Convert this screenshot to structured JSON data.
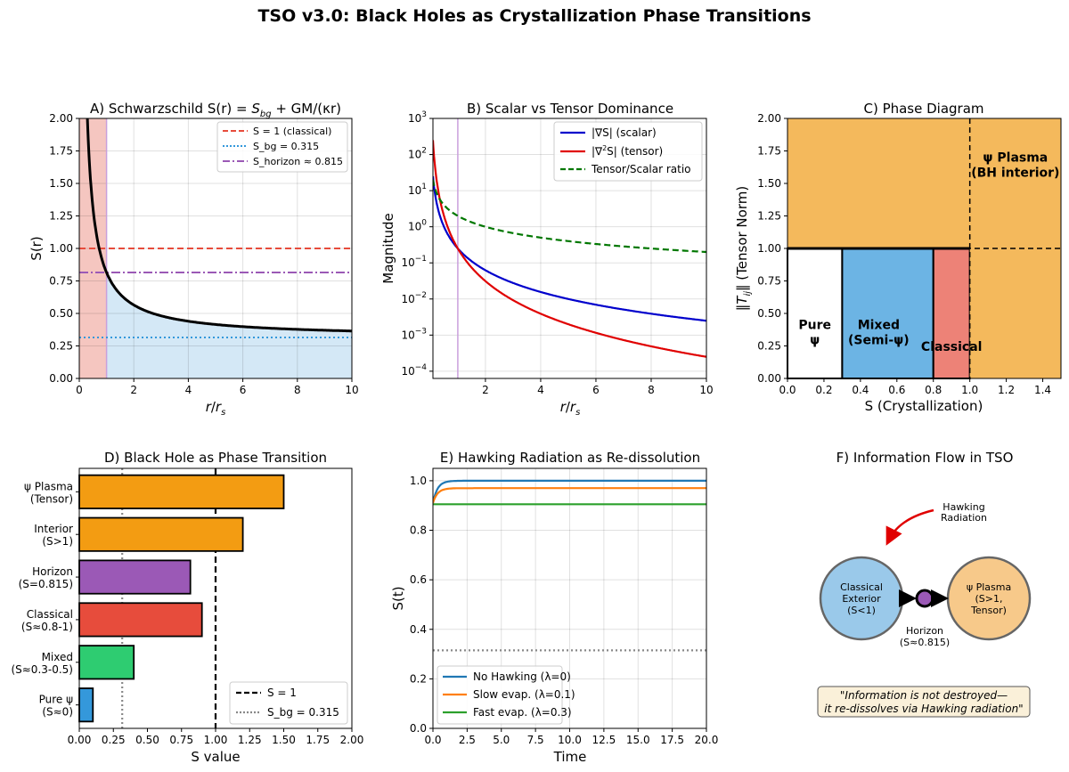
{
  "suptitle": "TSO v3.0: Black Holes as Crystallization Phase Transitions",
  "colors": {
    "classical_line": "#e74c3c",
    "sbg_line": "#3498db",
    "horizon_line": "#9b59b6",
    "scalar": "#0000cc",
    "tensor": "#e00000",
    "ratio": "#007700",
    "plasma": "#f4b95c",
    "mixed": "#6cb4e4",
    "classical_region": "#ed8277",
    "pure": "#ffffff",
    "bar_plasma": "#f39c12",
    "bar_interior": "#f39c12",
    "bar_horizon": "#9b59b6",
    "bar_classical": "#e74c3c",
    "bar_mixed": "#2ecc71",
    "bar_pure": "#3498db",
    "no_hawking": "#1f77b4",
    "slow_evap": "#ff7f0e",
    "fast_evap": "#2ca02c"
  },
  "chart_data": [
    {
      "id": "A",
      "type": "line",
      "title_pre": "A) Schwarzschild S(r) = ",
      "title_math_S": "S",
      "title_math_sub": "bg",
      "title_post": " + GM/(κr)",
      "xlabel_main": "r",
      "xlabel_sep": "/",
      "xlabel_sub_base": "r",
      "xlabel_sub": "s",
      "ylabel": "S(r)",
      "xlim": [
        0,
        10
      ],
      "ylim": [
        0,
        2
      ],
      "xticks": [
        "0",
        "2",
        "4",
        "6",
        "8",
        "10"
      ],
      "yticks": [
        "0.00",
        "0.25",
        "0.50",
        "0.75",
        "1.00",
        "1.25",
        "1.50",
        "1.75",
        "2.00"
      ],
      "grid": true,
      "curve": {
        "S_bg": 0.315,
        "coeff": 0.5,
        "r_min": 0.25,
        "r_max": 10
      },
      "horizon_r": 1.0,
      "hlines": [
        1.0,
        0.315,
        0.815
      ],
      "legend_position": "upper right",
      "legend": [
        "S = 1 (classical)",
        "S_bg = 0.315",
        "S_horizon ≈ 0.815"
      ]
    },
    {
      "id": "B",
      "type": "line",
      "title": "B) Scalar vs Tensor Dominance",
      "xlabel_main": "r",
      "xlabel_sep": "/",
      "xlabel_sub_base": "r",
      "xlabel_sub": "s",
      "ylabel": "Magnitude",
      "yscale": "log",
      "xlim": [
        0.1,
        10
      ],
      "ylim_exp": [
        -4.2,
        3
      ],
      "xticks": [
        "2",
        "4",
        "6",
        "8",
        "10"
      ],
      "yticks_exp": [
        "-4",
        "-3",
        "-2",
        "-1",
        "0",
        "1",
        "2",
        "3"
      ],
      "ytick_base": "10",
      "vline_r": 1.0,
      "grid": true,
      "legend_position": "upper right",
      "legend_scalar": "|∇S| (scalar)",
      "legend_tensor_pre": "|∇",
      "legend_tensor_sup": "2",
      "legend_tensor_post": "S| (tensor)",
      "legend_ratio": "Tensor/Scalar ratio",
      "series": {
        "scalar": {
          "x": [
            0.1,
            0.2,
            0.3,
            0.5,
            0.7,
            1,
            1.5,
            2,
            3,
            4,
            5,
            6,
            7,
            8,
            9,
            10
          ],
          "y": [
            25,
            6.25,
            2.8,
            1.0,
            0.5,
            0.25,
            0.11,
            0.063,
            0.028,
            0.016,
            0.01,
            0.0069,
            0.0051,
            0.0039,
            0.0031,
            0.0025
          ]
        },
        "tensor": {
          "x": [
            0.1,
            0.2,
            0.3,
            0.5,
            0.7,
            1,
            1.5,
            2,
            3,
            4,
            5,
            6,
            7,
            8,
            9,
            10
          ],
          "y": [
            300,
            50,
            15,
            3.2,
            1.2,
            0.25,
            0.074,
            0.031,
            0.0093,
            0.0039,
            0.002,
            0.0012,
            0.00073,
            0.00049,
            0.00034,
            0.00025
          ]
        },
        "ratio": {
          "x": [
            0.1,
            0.2,
            0.3,
            0.5,
            0.7,
            1,
            1.5,
            2,
            3,
            4,
            5,
            6,
            7,
            8,
            9,
            10
          ],
          "y": [
            20,
            10,
            6.67,
            4,
            2.86,
            2,
            1.33,
            1,
            0.67,
            0.5,
            0.4,
            0.33,
            0.29,
            0.25,
            0.22,
            0.2
          ]
        }
      }
    },
    {
      "id": "C",
      "type": "area",
      "title": "C) Phase Diagram",
      "xlabel": "S (Crystallization)",
      "ylabel_pre": "‖",
      "ylabel_T": "T",
      "ylabel_sub": "ij",
      "ylabel_post": "‖ (Tensor Norm)",
      "xlim": [
        0,
        1.5
      ],
      "ylim": [
        0,
        2
      ],
      "xticks": [
        "0.0",
        "0.2",
        "0.4",
        "0.6",
        "0.8",
        "1.0",
        "1.2",
        "1.4"
      ],
      "yticks": [
        "0.00",
        "0.25",
        "0.50",
        "0.75",
        "1.00",
        "1.25",
        "1.50",
        "1.75",
        "2.00"
      ],
      "regions": [
        {
          "x0": 0,
          "x1": 0.3,
          "y0": 0,
          "y1": 1,
          "color_key": "pure",
          "label_lines": [
            "Pure",
            "ψ"
          ]
        },
        {
          "x0": 0.3,
          "x1": 0.8,
          "y0": 0,
          "y1": 1,
          "color_key": "mixed",
          "label_lines": [
            "Mixed",
            "(Semi-ψ)"
          ]
        },
        {
          "x0": 0.8,
          "x1": 1.0,
          "y0": 0,
          "y1": 1,
          "color_key": "classical_region",
          "label_lines": [
            "Classical"
          ]
        },
        {
          "x0": 1.0,
          "x1": 1.5,
          "y0": 0,
          "y1": 2,
          "color_key": "plasma",
          "label_lines": [
            "ψ Plasma",
            "(BH interior)"
          ]
        }
      ],
      "dashed_x": 1.0,
      "dashed_y": 1.0
    },
    {
      "id": "D",
      "type": "bar",
      "orientation": "horizontal",
      "title": "D) Black Hole as Phase Transition",
      "xlabel": "S value",
      "xlim": [
        0,
        2
      ],
      "xticks": [
        "0.00",
        "0.25",
        "0.50",
        "0.75",
        "1.00",
        "1.25",
        "1.50",
        "1.75",
        "2.00"
      ],
      "categories": [
        {
          "lines": [
            "ψ Plasma",
            "(Tensor)"
          ],
          "value": 1.5,
          "color_key": "bar_plasma"
        },
        {
          "lines": [
            "Interior",
            "(S>1)"
          ],
          "value": 1.2,
          "color_key": "bar_interior"
        },
        {
          "lines": [
            "Horizon",
            "(S=0.815)"
          ],
          "value": 0.815,
          "color_key": "bar_horizon"
        },
        {
          "lines": [
            "Classical",
            "(S≈0.8-1)"
          ],
          "value": 0.9,
          "color_key": "bar_classical"
        },
        {
          "lines": [
            "Mixed",
            "(S≈0.3-0.5)"
          ],
          "value": 0.4,
          "color_key": "bar_mixed"
        },
        {
          "lines": [
            "Pure ψ",
            "(S≈0)"
          ],
          "value": 0.1,
          "color_key": "bar_pure"
        }
      ],
      "vlines": [
        1.0,
        0.315
      ],
      "legend_position": "lower right",
      "legend": [
        "S = 1",
        "S_bg = 0.315"
      ]
    },
    {
      "id": "E",
      "type": "line",
      "title": "E) Hawking Radiation as Re-dissolution",
      "xlabel": "Time",
      "ylabel": "S(t)",
      "xlim": [
        0,
        20
      ],
      "ylim": [
        0,
        1.05
      ],
      "xticks": [
        "0.0",
        "2.5",
        "5.0",
        "7.5",
        "10.0",
        "12.5",
        "15.0",
        "17.5",
        "20.0"
      ],
      "yticks": [
        "0.0",
        "0.2",
        "0.4",
        "0.6",
        "0.8",
        "1.0"
      ],
      "hline": 0.315,
      "grid": true,
      "legend_position": "lower left",
      "series": [
        {
          "name": "No Hawking (λ=0)",
          "plateau": 1.0,
          "start": 0.91,
          "color_key": "no_hawking"
        },
        {
          "name": "Slow evap. (λ=0.1)",
          "plateau": 0.97,
          "start": 0.91,
          "color_key": "slow_evap"
        },
        {
          "name": "Fast evap. (λ=0.3)",
          "plateau": 0.905,
          "start": 0.905,
          "color_key": "fast_evap"
        }
      ]
    },
    {
      "id": "F",
      "type": "diagram",
      "title": "F) Information Flow in TSO",
      "left_node": [
        "Classical",
        "Exterior",
        "(S<1)"
      ],
      "right_node": [
        "ψ Plasma",
        "(S>1,",
        "Tensor)"
      ],
      "center_label": [
        "Horizon",
        "(S≈0.815)"
      ],
      "arrow_label": [
        "Hawking",
        "Radiation"
      ],
      "quote": [
        "\"Information is not destroyed—",
        "it re-dissolves via Hawking radiation\""
      ]
    }
  ]
}
